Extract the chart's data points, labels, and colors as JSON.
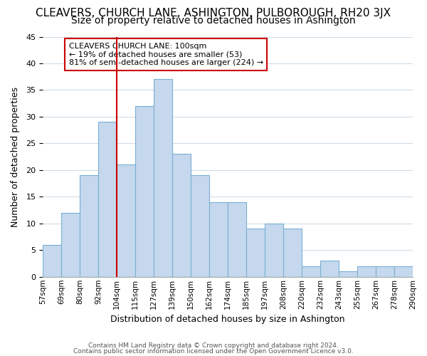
{
  "title": "CLEAVERS, CHURCH LANE, ASHINGTON, PULBOROUGH, RH20 3JX",
  "subtitle": "Size of property relative to detached houses in Ashington",
  "xlabel": "Distribution of detached houses by size in Ashington",
  "ylabel": "Number of detached properties",
  "bin_labels": [
    "57sqm",
    "69sqm",
    "80sqm",
    "92sqm",
    "104sqm",
    "115sqm",
    "127sqm",
    "139sqm",
    "150sqm",
    "162sqm",
    "174sqm",
    "185sqm",
    "197sqm",
    "208sqm",
    "220sqm",
    "232sqm",
    "243sqm",
    "255sqm",
    "267sqm",
    "278sqm",
    "290sqm"
  ],
  "bar_heights": [
    6,
    12,
    19,
    29,
    21,
    32,
    37,
    23,
    19,
    14,
    14,
    9,
    10,
    9,
    2,
    3,
    1,
    2,
    2,
    2
  ],
  "bar_color": "#c5d8ed",
  "bar_edgecolor": "#7aafd4",
  "vline_position": 4,
  "vline_color": "#cc0000",
  "ylim": [
    0,
    45
  ],
  "yticks": [
    0,
    5,
    10,
    15,
    20,
    25,
    30,
    35,
    40,
    45
  ],
  "annotation_text": "CLEAVERS CHURCH LANE: 100sqm\n← 19% of detached houses are smaller (53)\n81% of semi-detached houses are larger (224) →",
  "annotation_box_edgecolor": "#cc0000",
  "annotation_box_facecolor": "#ffffff",
  "footer_line1": "Contains HM Land Registry data © Crown copyright and database right 2024.",
  "footer_line2": "Contains public sector information licensed under the Open Government Licence v3.0.",
  "background_color": "#ffffff",
  "grid_color": "#d0dce8",
  "title_fontsize": 11,
  "subtitle_fontsize": 10
}
